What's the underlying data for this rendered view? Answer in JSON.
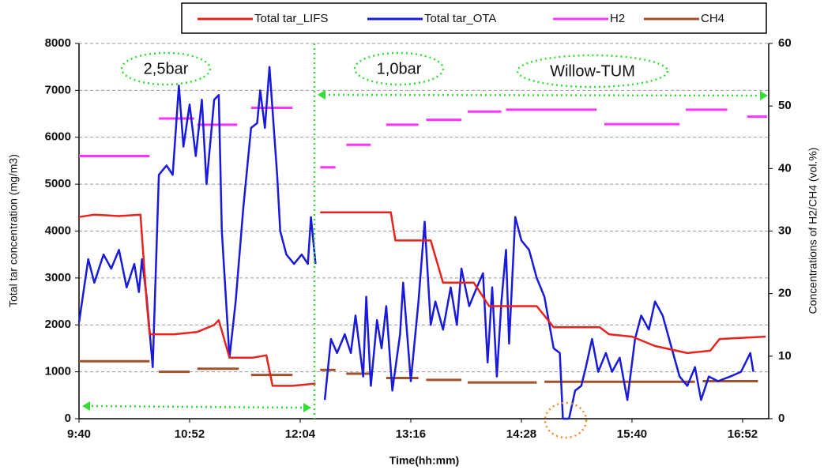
{
  "chart_data": {
    "type": "line",
    "x_label": "Time(hh:mm)",
    "y_label": "Total tar concentration  (mg/m3)",
    "y2_label": "Concentrations  of H2/CH4   (vol.%)",
    "annotations": [
      "2,5bar",
      "1,0bar",
      "Willow-TUM"
    ],
    "xlim": [
      580,
      1029
    ],
    "xticks": [
      {
        "value": 580,
        "label": "9:40"
      },
      {
        "value": 652,
        "label": "10:52"
      },
      {
        "value": 724,
        "label": "12:04"
      },
      {
        "value": 796,
        "label": "13:16"
      },
      {
        "value": 868,
        "label": "14:28"
      },
      {
        "value": 940,
        "label": "15:40"
      },
      {
        "value": 1012,
        "label": "16:52"
      }
    ],
    "ylim": [
      0,
      8000
    ],
    "yticks": [
      0,
      1000,
      2000,
      3000,
      4000,
      5000,
      6000,
      7000,
      8000
    ],
    "y2lim": [
      0,
      60
    ],
    "y2ticks": [
      0,
      10,
      20,
      30,
      40,
      50,
      60
    ],
    "grid": true,
    "series": [
      {
        "name": "Total tar_LIFS",
        "color": "#e8221c",
        "x": [
          580,
          590,
          606,
          620,
          624,
          626,
          642,
          657,
          668,
          671,
          678,
          693,
          702,
          706,
          719,
          734,
          735.5,
          737,
          783,
          786,
          809,
          817,
          837,
          847,
          878,
          889,
          919,
          925,
          940,
          955,
          976,
          991,
          997,
          1027
        ],
        "values": [
          4300,
          4350,
          4320,
          4350,
          2500,
          1800,
          1800,
          1850,
          2000,
          2100,
          1300,
          1300,
          1350,
          700,
          700,
          750,
          null,
          4400,
          4400,
          3800,
          3800,
          2900,
          2900,
          2400,
          2400,
          1950,
          1950,
          1800,
          1750,
          1550,
          1400,
          1450,
          1700,
          1750
        ]
      },
      {
        "name": "Total tar_OTA",
        "color": "#1a1adc",
        "x": [
          580,
          586,
          590,
          596,
          601,
          606,
          611,
          616,
          619,
          621,
          624,
          628,
          632,
          637,
          641,
          645,
          648,
          652,
          656,
          660,
          663,
          668,
          671,
          673,
          678,
          682,
          687,
          692,
          696,
          698,
          701,
          704,
          709,
          711,
          715,
          720,
          725,
          729,
          731,
          734,
          737,
          740,
          744,
          748,
          753,
          757,
          760,
          765,
          767,
          770,
          774,
          777,
          780,
          784,
          789,
          791,
          796,
          801,
          805,
          809,
          812,
          817,
          822,
          826,
          829,
          834,
          839,
          843,
          846,
          849,
          852,
          855,
          858,
          860,
          864,
          868,
          873,
          878,
          883,
          889,
          893,
          895,
          899,
          903,
          907,
          910,
          914,
          918,
          923,
          927,
          932,
          937,
          942,
          946,
          951,
          955,
          960,
          965,
          971,
          976,
          981,
          985,
          990,
          996,
          1004,
          1011,
          1017,
          1019
        ],
        "values": [
          2050,
          3400,
          2900,
          3500,
          3200,
          3600,
          2800,
          3300,
          2700,
          3400,
          2600,
          1100,
          5200,
          5400,
          5200,
          7100,
          5800,
          6700,
          5600,
          6800,
          5000,
          6800,
          6900,
          4000,
          1300,
          2500,
          4500,
          6200,
          6300,
          7000,
          6200,
          7500,
          5200,
          4000,
          3500,
          3300,
          3500,
          3300,
          4300,
          3300,
          null,
          400,
          1700,
          1400,
          1800,
          1400,
          2200,
          900,
          2600,
          700,
          2100,
          1500,
          2400,
          600,
          1800,
          2900,
          800,
          2500,
          4200,
          2000,
          2500,
          1900,
          2800,
          2000,
          3200,
          2400,
          2800,
          3100,
          1200,
          2800,
          900,
          2500,
          3600,
          1600,
          4300,
          3800,
          3600,
          3000,
          2600,
          1500,
          1400,
          0,
          0,
          600,
          700,
          1100,
          1700,
          1000,
          1400,
          1000,
          1300,
          400,
          1700,
          2200,
          1900,
          2500,
          2200,
          1600,
          900,
          700,
          1100,
          400,
          900,
          800,
          900,
          1000,
          1400,
          1000
        ]
      },
      {
        "name": "H2",
        "color": "#ff33ff",
        "axis": "y2",
        "x": [
          580,
          626,
          629,
          632,
          655,
          656,
          657,
          683,
          687,
          692,
          719,
          728,
          737,
          747,
          750,
          754,
          770,
          775,
          780,
          801,
          803,
          806,
          829,
          831,
          833,
          855,
          856,
          858,
          917,
          919,
          922,
          971,
          973,
          975,
          1002,
          1008,
          1015,
          1028
        ],
        "values": [
          42,
          42,
          null,
          48,
          48,
          null,
          47,
          47,
          null,
          49.7,
          49.7,
          null,
          40.2,
          40.2,
          null,
          43.8,
          43.8,
          null,
          47,
          47,
          null,
          47.8,
          47.8,
          null,
          49.1,
          49.1,
          null,
          49.4,
          49.4,
          null,
          47.1,
          47.1,
          null,
          49.4,
          49.4,
          null,
          48.3,
          48.3
        ]
      },
      {
        "name": "CH4",
        "color": "#a0522d",
        "axis": "y2",
        "x": [
          580,
          626,
          629,
          632,
          652,
          655,
          657,
          684,
          688,
          692,
          719,
          728,
          737,
          747,
          750,
          754,
          770,
          775,
          780,
          801,
          803,
          806,
          829,
          831,
          833,
          878,
          880,
          883,
          981,
          983,
          986,
          1022
        ],
        "values": [
          9.2,
          9.2,
          null,
          7.5,
          7.5,
          null,
          8,
          8,
          null,
          7,
          7,
          null,
          7.8,
          7.8,
          null,
          7.2,
          7.2,
          null,
          6.5,
          6.5,
          null,
          6.2,
          6.2,
          null,
          5.8,
          5.8,
          null,
          5.9,
          5.9,
          null,
          6,
          6
        ]
      }
    ]
  }
}
